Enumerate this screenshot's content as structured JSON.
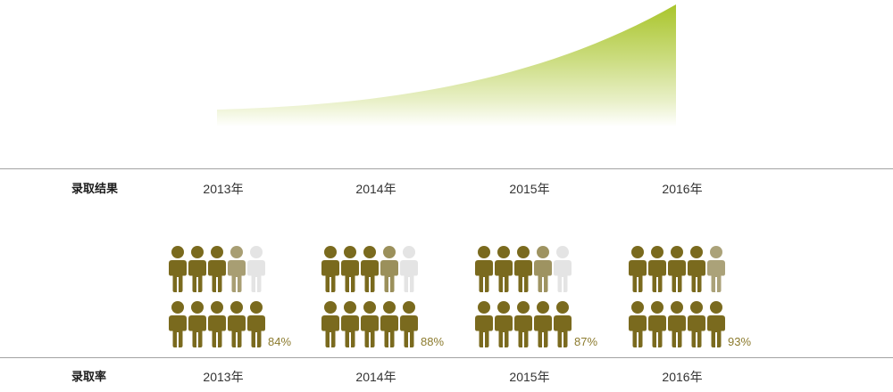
{
  "row_labels": {
    "results": "录取结果",
    "rate": "录取率"
  },
  "chart_data": {
    "type": "bar",
    "categories": [
      "2013年",
      "2014年",
      "2015年",
      "2016年"
    ],
    "values": [
      84,
      88,
      87,
      93
    ],
    "value_labels": [
      "84%",
      "88%",
      "87%",
      "93%"
    ],
    "ylim": [
      0,
      100
    ]
  },
  "icons": {
    "mark": "person-icon"
  },
  "colors": {
    "filled": "#7a6a1e",
    "empty": "#e4e4e4",
    "percent_text": "#8c7b2e",
    "curve_accent": "#a9c52b"
  }
}
